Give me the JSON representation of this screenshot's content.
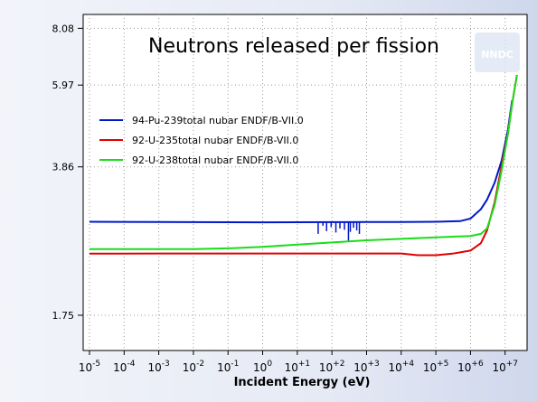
{
  "chart_data": {
    "type": "line",
    "title": "Neutrons released per fission",
    "xlabel": "Incident Energy (eV)",
    "ylabel": "",
    "xscale": "log",
    "yscale": "log",
    "xlim": [
      1e-05,
      30000000.0
    ],
    "ylim": [
      1.45,
      8.7
    ],
    "x_ticks": [
      {
        "value": 1e-05,
        "base": "10",
        "exp": "-5"
      },
      {
        "value": 0.0001,
        "base": "10",
        "exp": "-4"
      },
      {
        "value": 0.001,
        "base": "10",
        "exp": "-3"
      },
      {
        "value": 0.01,
        "base": "10",
        "exp": "-2"
      },
      {
        "value": 0.1,
        "base": "10",
        "exp": "-1"
      },
      {
        "value": 1,
        "base": "10",
        "exp": "0"
      },
      {
        "value": 10,
        "base": "10",
        "exp": "+1"
      },
      {
        "value": 100,
        "base": "10",
        "exp": "+2"
      },
      {
        "value": 1000,
        "base": "10",
        "exp": "+3"
      },
      {
        "value": 10000,
        "base": "10",
        "exp": "+4"
      },
      {
        "value": 100000,
        "base": "10",
        "exp": "+5"
      },
      {
        "value": 1000000,
        "base": "10",
        "exp": "+6"
      },
      {
        "value": 10000000,
        "base": "10",
        "exp": "+7"
      }
    ],
    "y_ticks": [
      {
        "value": 1.75,
        "label": "1.75"
      },
      {
        "value": 3.86,
        "label": "3.86"
      },
      {
        "value": 5.97,
        "label": "5.97"
      },
      {
        "value": 8.08,
        "label": "8.08"
      }
    ],
    "grid": true,
    "legend_position": "upper-left",
    "series": [
      {
        "name": "94-Pu-239total nubar ENDF/B-VII.0",
        "color": "#0018c8",
        "points": [
          [
            1e-05,
            2.88
          ],
          [
            0.001,
            2.877
          ],
          [
            1,
            2.872
          ],
          [
            10,
            2.873
          ],
          [
            100,
            2.875
          ],
          [
            1000,
            2.876
          ],
          [
            10000.0,
            2.878
          ],
          [
            100000.0,
            2.881
          ],
          [
            500000.0,
            2.89
          ],
          [
            1000000.0,
            2.93
          ],
          [
            2000000.0,
            3.08
          ],
          [
            3000000.0,
            3.24
          ],
          [
            5000000.0,
            3.55
          ],
          [
            8000000.0,
            4.0
          ],
          [
            12000000.0,
            4.7
          ],
          [
            16000000.0,
            5.5
          ]
        ],
        "resonances": [
          [
            40,
            2.7
          ],
          [
            55,
            2.82
          ],
          [
            70,
            2.74
          ],
          [
            95,
            2.8
          ],
          [
            130,
            2.72
          ],
          [
            170,
            2.78
          ],
          [
            230,
            2.76
          ],
          [
            300,
            2.6
          ],
          [
            340,
            2.73
          ],
          [
            420,
            2.79
          ],
          [
            520,
            2.75
          ],
          [
            620,
            2.7
          ]
        ]
      },
      {
        "name": "92-U-235total nubar ENDF/B-VII.0",
        "color": "#e00000",
        "points": [
          [
            1e-05,
            2.43
          ],
          [
            0.001,
            2.432
          ],
          [
            1,
            2.432
          ],
          [
            100,
            2.432
          ],
          [
            10000.0,
            2.432
          ],
          [
            30000.0,
            2.41
          ],
          [
            100000.0,
            2.41
          ],
          [
            300000.0,
            2.43
          ],
          [
            1000000.0,
            2.47
          ],
          [
            2000000.0,
            2.57
          ],
          [
            3000000.0,
            2.75
          ],
          [
            5000000.0,
            3.2
          ],
          [
            8000000.0,
            3.9
          ],
          [
            12000000.0,
            4.6
          ],
          [
            16000000.0,
            5.4
          ],
          [
            22000000.0,
            6.3
          ]
        ]
      },
      {
        "name": "92-U-238total nubar ENDF/B-VII.0",
        "color": "#19dd19",
        "points": [
          [
            1e-05,
            2.49
          ],
          [
            0.01,
            2.49
          ],
          [
            0.1,
            2.5
          ],
          [
            1,
            2.52
          ],
          [
            10,
            2.55
          ],
          [
            100,
            2.58
          ],
          [
            1000.0,
            2.61
          ],
          [
            10000.0,
            2.63
          ],
          [
            100000.0,
            2.65
          ],
          [
            1000000.0,
            2.67
          ],
          [
            2000000.0,
            2.7
          ],
          [
            3000000.0,
            2.78
          ],
          [
            5000000.0,
            3.15
          ],
          [
            8000000.0,
            3.8
          ],
          [
            12000000.0,
            4.6
          ],
          [
            16000000.0,
            5.4
          ],
          [
            22000000.0,
            6.3
          ]
        ]
      }
    ]
  },
  "watermark": {
    "text": "NNDC"
  }
}
